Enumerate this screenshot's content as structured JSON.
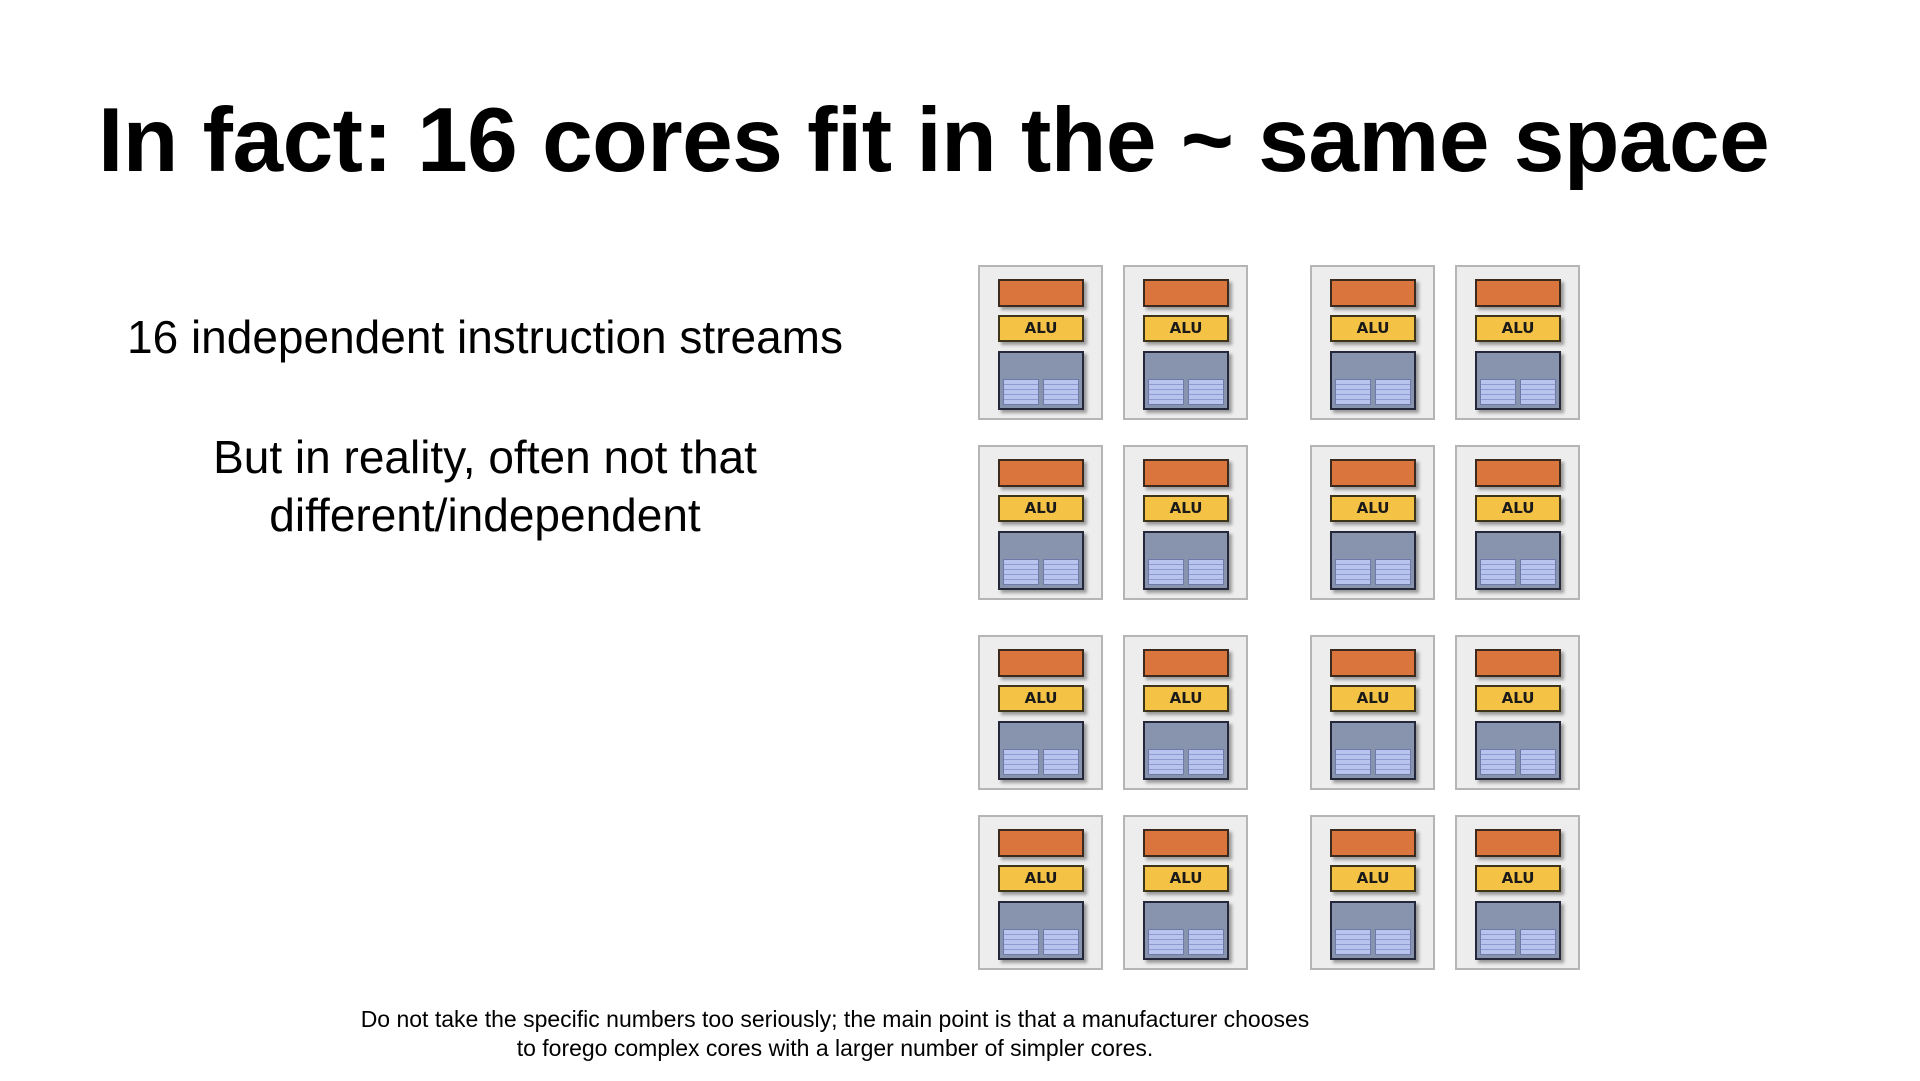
{
  "slide": {
    "title": "In fact: 16 cores fit in the ~ same space",
    "bullet_1": "16 independent instruction streams",
    "bullet_2_line_1": "But in reality, often not that",
    "bullet_2_line_2": "different/independent",
    "footnote_line_1": "Do not take the specific numbers too seriously; the main point is that a manufacturer chooses",
    "footnote_line_2": "to forego complex cores with a larger number of simpler cores."
  },
  "diagram": {
    "core_count": 16,
    "rows": 4,
    "cols": 4,
    "alu_label": "ALU",
    "colors": {
      "core_bg": "#ededed",
      "fetch_decode": "#d9753d",
      "alu": "#f4c244",
      "context": "#8893ad",
      "registers": "#b9c4ee"
    }
  }
}
